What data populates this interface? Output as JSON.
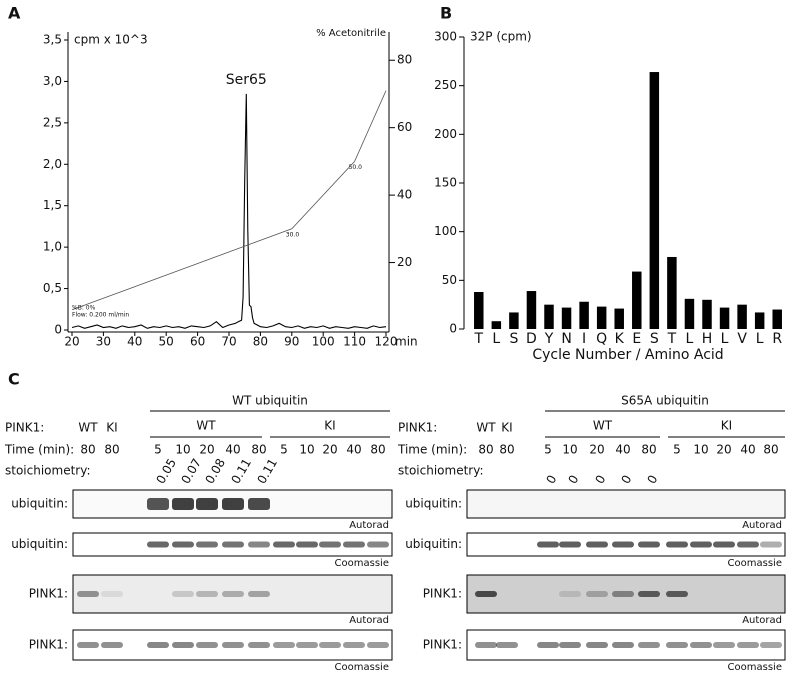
{
  "chart_data": [
    {
      "type": "line",
      "panel_label": "A",
      "ylabel": "cpm x 10^3",
      "y2label": "% Acetonitrile",
      "xlabel": "min",
      "xlim": [
        20,
        120
      ],
      "xticks": [
        20,
        30,
        40,
        50,
        60,
        70,
        80,
        90,
        100,
        110,
        120
      ],
      "ylim": [
        0,
        3.5
      ],
      "yticks": [
        0,
        {
          "value": 0.5,
          "label": "0,5"
        },
        {
          "value": 1,
          "label": "1,0"
        },
        {
          "value": 1.5,
          "label": "1,5"
        },
        {
          "value": 2,
          "label": "2,0"
        },
        {
          "value": 2.5,
          "label": "2,5"
        },
        {
          "value": 3,
          "label": "3,0"
        },
        {
          "value": 3.5,
          "label": "3,5"
        }
      ],
      "y2lim": [
        0,
        86
      ],
      "y2ticks": [
        20,
        40,
        60,
        80
      ],
      "x": [
        20,
        22,
        24,
        26,
        28,
        30,
        32,
        34,
        36,
        38,
        40,
        42,
        44,
        46,
        48,
        50,
        52,
        54,
        56,
        58,
        60,
        62,
        64,
        66,
        68,
        70,
        72,
        73,
        74,
        74.5,
        75,
        75.5,
        76,
        76.5,
        77,
        77.5,
        78,
        79,
        80,
        82,
        84,
        86,
        88,
        90,
        92,
        94,
        96,
        98,
        100,
        102,
        104,
        106,
        108,
        110,
        112,
        114,
        116,
        118,
        120
      ],
      "series": [
        {
          "color": "#000000",
          "values": [
            0.03,
            0.05,
            0.02,
            0.04,
            0.06,
            0.03,
            0.04,
            0.02,
            0.05,
            0.03,
            0.04,
            0.06,
            0.02,
            0.04,
            0.03,
            0.05,
            0.03,
            0.04,
            0.02,
            0.05,
            0.04,
            0.03,
            0.05,
            0.1,
            0.03,
            0.06,
            0.08,
            0.1,
            0.12,
            0.4,
            1.8,
            2.85,
            1.2,
            0.3,
            0.28,
            0.15,
            0.08,
            0.06,
            0.04,
            0.03,
            0.05,
            0.08,
            0.04,
            0.03,
            0.05,
            0.02,
            0.04,
            0.03,
            0.05,
            0.02,
            0.04,
            0.03,
            0.02,
            0.04,
            0.03,
            0.02,
            0.05,
            0.03,
            0.04
          ]
        },
        {
          "color": "#555555",
          "axis": "y2",
          "x": [
            20,
            90,
            110,
            120
          ],
          "values": [
            6,
            30,
            50,
            71
          ],
          "value_labels": [
            null,
            "30.0",
            "50.0",
            null
          ]
        }
      ],
      "annotations": [
        {
          "text": "Ser65",
          "x": 75.5,
          "y": 2.85
        }
      ],
      "notes": [
        "%B: 0%",
        "Flow: 0.200 ml/min"
      ]
    },
    {
      "type": "bar",
      "panel_label": "B",
      "ylabel": "32P (cpm)",
      "xlabel": "Cycle Number / Amino Acid",
      "categories": [
        "T",
        "L",
        "S",
        "D",
        "Y",
        "N",
        "I",
        "Q",
        "K",
        "E",
        "S",
        "T",
        "L",
        "H",
        "L",
        "V",
        "L",
        "R"
      ],
      "values": [
        38,
        8,
        17,
        39,
        25,
        22,
        28,
        23,
        21,
        59,
        264,
        74,
        31,
        30,
        22,
        25,
        17,
        20
      ],
      "color": "#000000",
      "ylim": [
        0,
        300
      ],
      "yticks": [
        0,
        50,
        100,
        150,
        200,
        250,
        300
      ]
    }
  ],
  "panel_c": {
    "label": "C",
    "gels": [
      {
        "title": "WT ubiquitin",
        "row_label": "PINK1:",
        "control_lanes": [
          "WT",
          "KI"
        ],
        "groups": [
          "WT",
          "KI"
        ],
        "time_label": "Time (min):",
        "times": [
          80,
          80,
          5,
          10,
          20,
          40,
          80,
          5,
          10,
          20,
          40,
          80
        ],
        "stoichiometry_label": "stoichiometry:",
        "stoichiometry": [
          0.05,
          0.07,
          0.08,
          0.11,
          0.11
        ],
        "blots": [
          {
            "label": "ubiquitin:",
            "method": "Autorad"
          },
          {
            "label": "ubiquitin:",
            "method": "Coomassie"
          },
          {
            "label": "PINK1:",
            "method": "Autorad"
          },
          {
            "label": "PINK1:",
            "method": "Coomassie"
          }
        ]
      },
      {
        "title": "S65A ubiquitin",
        "row_label": "PINK1:",
        "control_lanes": [
          "WT",
          "KI"
        ],
        "groups": [
          "WT",
          "KI"
        ],
        "time_label": "Time (min):",
        "times": [
          80,
          80,
          5,
          10,
          20,
          40,
          80,
          5,
          10,
          20,
          40,
          80
        ],
        "stoichiometry_label": "stoichiometry:",
        "stoichiometry": [
          0,
          0,
          0,
          0,
          0
        ],
        "blots": [
          {
            "label": "ubiquitin:",
            "method": "Autorad"
          },
          {
            "label": "ubiquitin:",
            "method": "Coomassie"
          },
          {
            "label": "PINK1:",
            "method": "Autorad"
          },
          {
            "label": "PINK1:",
            "method": "Coomassie"
          }
        ]
      }
    ]
  }
}
